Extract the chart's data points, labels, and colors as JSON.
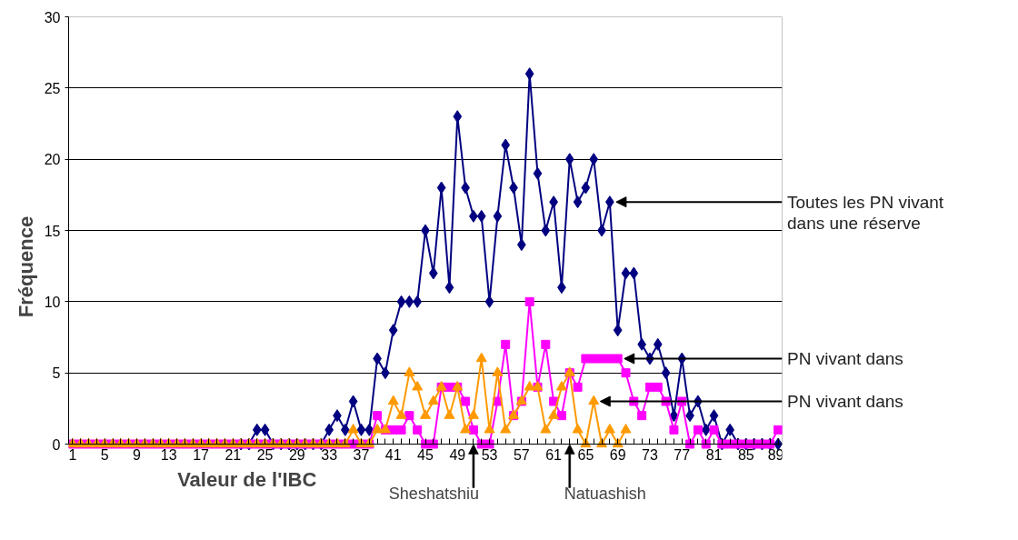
{
  "chart_data": {
    "type": "line",
    "xlabel": "Valeur de l'IBC",
    "ylabel": "Fréquence",
    "x": [
      1,
      2,
      3,
      4,
      5,
      6,
      7,
      8,
      9,
      10,
      11,
      12,
      13,
      14,
      15,
      16,
      17,
      18,
      19,
      20,
      21,
      22,
      23,
      24,
      25,
      26,
      27,
      28,
      29,
      30,
      31,
      32,
      33,
      34,
      35,
      36,
      37,
      38,
      39,
      40,
      41,
      42,
      43,
      44,
      45,
      46,
      47,
      48,
      49,
      50,
      51,
      52,
      53,
      54,
      55,
      56,
      57,
      58,
      59,
      60,
      61,
      62,
      63,
      64,
      65,
      66,
      67,
      68,
      69,
      70,
      71,
      72,
      73,
      74,
      75,
      76,
      77,
      78,
      79,
      80,
      81,
      82,
      83,
      84,
      85,
      86,
      87,
      88,
      89
    ],
    "series": [
      {
        "color": "#000080",
        "marker": "diamond",
        "values": [
          null,
          null,
          null,
          null,
          null,
          null,
          null,
          null,
          null,
          null,
          null,
          null,
          null,
          null,
          null,
          null,
          null,
          null,
          null,
          null,
          null,
          0,
          0,
          1,
          1,
          0,
          0,
          0,
          0,
          0,
          0,
          0,
          1,
          2,
          1,
          3,
          1,
          1,
          6,
          5,
          8,
          10,
          10,
          10,
          15,
          12,
          18,
          11,
          23,
          18,
          16,
          16,
          10,
          16,
          21,
          18,
          14,
          26,
          19,
          15,
          17,
          11,
          20,
          17,
          18,
          20,
          15,
          17,
          8,
          12,
          12,
          7,
          6,
          7,
          5,
          2,
          6,
          2,
          3,
          1,
          2,
          0,
          1,
          0,
          0,
          0,
          0,
          0,
          0
        ]
      },
      {
        "color": "#ff00ff",
        "marker": "square",
        "values": [
          0,
          0,
          0,
          0,
          0,
          0,
          0,
          0,
          0,
          0,
          0,
          0,
          0,
          0,
          0,
          0,
          0,
          0,
          0,
          0,
          0,
          0,
          0,
          0,
          0,
          0,
          0,
          0,
          0,
          0,
          0,
          0,
          0,
          0,
          0,
          0,
          0,
          0,
          2,
          1,
          1,
          1,
          2,
          1,
          0,
          0,
          4,
          4,
          4,
          3,
          1,
          0,
          0,
          3,
          7,
          2,
          3,
          10,
          4,
          7,
          3,
          2,
          5,
          4,
          6,
          6,
          6,
          6,
          6,
          5,
          3,
          2,
          4,
          4,
          3,
          1,
          3,
          0,
          1,
          0,
          1,
          0,
          0,
          0,
          0,
          0,
          0,
          0,
          1
        ]
      },
      {
        "color": "#ff9900",
        "marker": "triangle",
        "values": [
          0,
          0,
          0,
          0,
          0,
          0,
          0,
          0,
          0,
          0,
          0,
          0,
          0,
          0,
          0,
          0,
          0,
          0,
          0,
          0,
          0,
          0,
          0,
          0,
          0,
          0,
          0,
          0,
          0,
          0,
          0,
          0,
          0,
          0,
          0,
          1,
          0,
          0,
          1,
          1,
          3,
          2,
          5,
          4,
          2,
          3,
          4,
          2,
          4,
          1,
          2,
          6,
          1,
          5,
          1,
          2,
          3,
          4,
          4,
          1,
          2,
          4,
          5,
          1,
          0,
          3,
          0,
          1,
          0,
          1,
          null,
          null,
          null,
          null,
          null,
          null,
          null,
          null,
          null,
          null,
          null,
          null,
          null,
          null,
          null,
          null,
          null,
          null,
          null
        ]
      }
    ],
    "xlim": [
      0.5,
      89.5
    ],
    "xticks": [
      1,
      {
        "value": 2,
        "label": null
      },
      {
        "value": 3,
        "label": null
      },
      {
        "value": 4,
        "label": null
      },
      5,
      {
        "value": 6,
        "label": null
      },
      {
        "value": 7,
        "label": null
      },
      {
        "value": 8,
        "label": null
      },
      9,
      {
        "value": 10,
        "label": null
      },
      {
        "value": 11,
        "label": null
      },
      {
        "value": 12,
        "label": null
      },
      13,
      {
        "value": 14,
        "label": null
      },
      {
        "value": 15,
        "label": null
      },
      {
        "value": 16,
        "label": null
      },
      17,
      {
        "value": 18,
        "label": null
      },
      {
        "value": 19,
        "label": null
      },
      {
        "value": 20,
        "label": null
      },
      21,
      {
        "value": 22,
        "label": null
      },
      {
        "value": 23,
        "label": null
      },
      {
        "value": 24,
        "label": null
      },
      25,
      {
        "value": 26,
        "label": null
      },
      {
        "value": 27,
        "label": null
      },
      {
        "value": 28,
        "label": null
      },
      29,
      {
        "value": 30,
        "label": null
      },
      {
        "value": 31,
        "label": null
      },
      {
        "value": 32,
        "label": null
      },
      33,
      {
        "value": 34,
        "label": null
      },
      {
        "value": 35,
        "label": null
      },
      {
        "value": 36,
        "label": null
      },
      37,
      {
        "value": 38,
        "label": null
      },
      {
        "value": 39,
        "label": null
      },
      {
        "value": 40,
        "label": null
      },
      41,
      {
        "value": 42,
        "label": null
      },
      {
        "value": 43,
        "label": null
      },
      {
        "value": 44,
        "label": null
      },
      45,
      {
        "value": 46,
        "label": null
      },
      {
        "value": 47,
        "label": null
      },
      {
        "value": 48,
        "label": null
      },
      49,
      {
        "value": 50,
        "label": null
      },
      {
        "value": 51,
        "label": null
      },
      {
        "value": 52,
        "label": null
      },
      53,
      {
        "value": 54,
        "label": null
      },
      {
        "value": 55,
        "label": null
      },
      {
        "value": 56,
        "label": null
      },
      57,
      {
        "value": 58,
        "label": null
      },
      {
        "value": 59,
        "label": null
      },
      {
        "value": 60,
        "label": null
      },
      61,
      {
        "value": 62,
        "label": null
      },
      {
        "value": 63,
        "label": null
      },
      {
        "value": 64,
        "label": null
      },
      65,
      {
        "value": 66,
        "label": null
      },
      {
        "value": 67,
        "label": null
      },
      {
        "value": 68,
        "label": null
      },
      69,
      {
        "value": 70,
        "label": null
      },
      {
        "value": 71,
        "label": null
      },
      {
        "value": 72,
        "label": null
      },
      73,
      {
        "value": 74,
        "label": null
      },
      {
        "value": 75,
        "label": null
      },
      {
        "value": 76,
        "label": null
      },
      77,
      {
        "value": 78,
        "label": null
      },
      {
        "value": 79,
        "label": null
      },
      {
        "value": 80,
        "label": null
      },
      81,
      {
        "value": 82,
        "label": null
      },
      {
        "value": 83,
        "label": null
      },
      {
        "value": 84,
        "label": null
      },
      85,
      {
        "value": 86,
        "label": null
      },
      {
        "value": 87,
        "label": null
      },
      {
        "value": 88,
        "label": null
      },
      89
    ],
    "ylim": [
      0,
      30
    ],
    "yticks": [
      0,
      5,
      10,
      15,
      20,
      25,
      30
    ],
    "grid": "y",
    "line_style": "solid",
    "annotations": [
      {
        "text": "Toutes les PN vivant\ndans une réserve",
        "x": 68,
        "y": 17
      },
      {
        "text": "PN vivant dans",
        "x": 69,
        "y": 6
      },
      {
        "text": "PN vivant dans",
        "x": 66,
        "y": 3
      }
    ],
    "ref_lines": [
      {
        "axis": "x",
        "value": 51,
        "label": "Sheshatshiu"
      },
      {
        "axis": "x",
        "value": 63,
        "label": "Natuashish"
      }
    ]
  }
}
